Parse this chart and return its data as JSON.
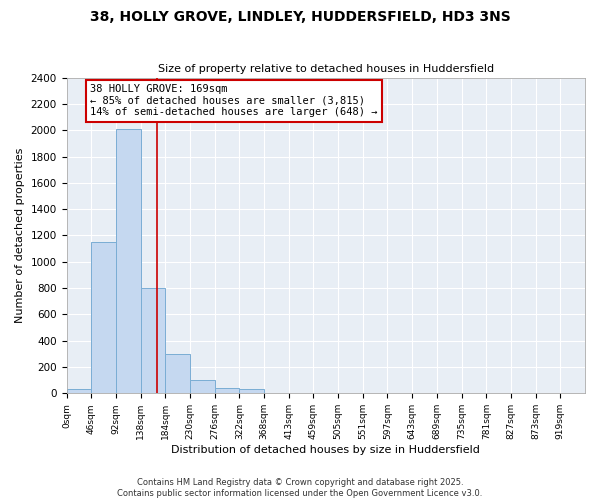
{
  "title1": "38, HOLLY GROVE, LINDLEY, HUDDERSFIELD, HD3 3NS",
  "title2": "Size of property relative to detached houses in Huddersfield",
  "xlabel": "Distribution of detached houses by size in Huddersfield",
  "ylabel": "Number of detached properties",
  "bin_labels": [
    "0sqm",
    "46sqm",
    "92sqm",
    "138sqm",
    "184sqm",
    "230sqm",
    "276sqm",
    "322sqm",
    "368sqm",
    "413sqm",
    "459sqm",
    "505sqm",
    "551sqm",
    "597sqm",
    "643sqm",
    "689sqm",
    "735sqm",
    "781sqm",
    "827sqm",
    "873sqm",
    "919sqm"
  ],
  "bar_values": [
    30,
    1150,
    2010,
    800,
    300,
    100,
    40,
    30,
    0,
    0,
    0,
    0,
    0,
    0,
    0,
    0,
    0,
    0,
    0,
    0,
    0
  ],
  "bar_color": "#c5d8f0",
  "bar_edge_color": "#7aadd4",
  "vline_x": 169,
  "vline_color": "#cc0000",
  "annotation_line1": "38 HOLLY GROVE: 169sqm",
  "annotation_line2": "← 85% of detached houses are smaller (3,815)",
  "annotation_line3": "14% of semi-detached houses are larger (648) →",
  "annotation_box_edge_color": "#cc0000",
  "ylim": [
    0,
    2400
  ],
  "yticks": [
    0,
    200,
    400,
    600,
    800,
    1000,
    1200,
    1400,
    1600,
    1800,
    2000,
    2200,
    2400
  ],
  "footnote": "Contains HM Land Registry data © Crown copyright and database right 2025.\nContains public sector information licensed under the Open Government Licence v3.0.",
  "fig_bg_color": "#ffffff",
  "plot_bg_color": "#e8eef5",
  "grid_color": "#ffffff",
  "bin_width": 46
}
